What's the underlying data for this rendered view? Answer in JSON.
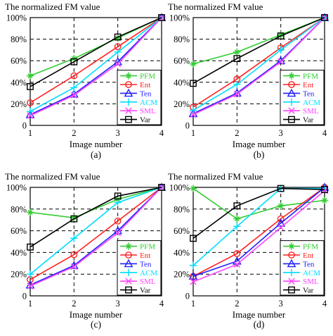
{
  "figure": {
    "panels": [
      "(a)",
      "(b)",
      "(c)",
      "(d)"
    ]
  },
  "chart_data": [
    {
      "type": "line",
      "title": "The normalized FM value",
      "xlabel": "Image number",
      "ylabel": "",
      "panel_label": "(a)",
      "x": [
        1,
        2,
        3,
        4
      ],
      "xlim": [
        1,
        4
      ],
      "ylim": [
        0,
        100
      ],
      "y_ticks": [
        "0",
        "20%",
        "40%",
        "60%",
        "80%",
        "100%"
      ],
      "x_ticks": [
        "1",
        "2",
        "3",
        "4"
      ],
      "grid": true,
      "legend": "bottom-right",
      "series": [
        {
          "name": "PFM",
          "color": "#33cc33",
          "marker": "star",
          "values": [
            46,
            62,
            81,
            100
          ]
        },
        {
          "name": "Ent",
          "color": "#ff2020",
          "marker": "circle",
          "values": [
            21,
            46,
            73,
            100
          ]
        },
        {
          "name": "Ten",
          "color": "#2020ff",
          "marker": "triangle",
          "values": [
            10,
            29,
            59,
            100
          ]
        },
        {
          "name": "ACM",
          "color": "#00ddff",
          "marker": "plus",
          "values": [
            13,
            35,
            68,
            100
          ]
        },
        {
          "name": "SML",
          "color": "#ff44ff",
          "marker": "x",
          "values": [
            9,
            28,
            57,
            100
          ]
        },
        {
          "name": "Var",
          "color": "#000000",
          "marker": "square",
          "values": [
            36,
            59,
            82,
            100
          ]
        }
      ]
    },
    {
      "type": "line",
      "title": "The normalized FM value",
      "xlabel": "Image number",
      "ylabel": "",
      "panel_label": "(b)",
      "x": [
        1,
        2,
        3,
        4
      ],
      "xlim": [
        1,
        4
      ],
      "ylim": [
        0,
        100
      ],
      "y_ticks": [
        "0",
        "20%",
        "40%",
        "60%",
        "80%",
        "100%"
      ],
      "x_ticks": [
        "1",
        "2",
        "3",
        "4"
      ],
      "grid": true,
      "legend": "bottom-right",
      "series": [
        {
          "name": "PFM",
          "color": "#33cc33",
          "marker": "star",
          "values": [
            57,
            68,
            84,
            100
          ]
        },
        {
          "name": "Ent",
          "color": "#ff2020",
          "marker": "circle",
          "values": [
            17,
            43,
            72,
            100
          ]
        },
        {
          "name": "Ten",
          "color": "#2020ff",
          "marker": "triangle",
          "values": [
            11,
            30,
            60,
            100
          ]
        },
        {
          "name": "ACM",
          "color": "#00ddff",
          "marker": "plus",
          "values": [
            14,
            38,
            70,
            100
          ]
        },
        {
          "name": "SML",
          "color": "#ff44ff",
          "marker": "x",
          "values": [
            10,
            29,
            59,
            100
          ]
        },
        {
          "name": "Var",
          "color": "#000000",
          "marker": "square",
          "values": [
            39,
            62,
            83,
            100
          ]
        }
      ]
    },
    {
      "type": "line",
      "title": "The normalized FM value",
      "xlabel": "Image number",
      "ylabel": "",
      "panel_label": "(c)",
      "x": [
        1,
        2,
        3,
        4
      ],
      "xlim": [
        1,
        4
      ],
      "ylim": [
        0,
        100
      ],
      "y_ticks": [
        "0",
        "20%",
        "40%",
        "60%",
        "80%",
        "100%"
      ],
      "x_ticks": [
        "1",
        "2",
        "3",
        "4"
      ],
      "grid": true,
      "legend": "bottom-right",
      "series": [
        {
          "name": "PFM",
          "color": "#33cc33",
          "marker": "star",
          "values": [
            77,
            72,
            89,
            100
          ]
        },
        {
          "name": "Ent",
          "color": "#ff2020",
          "marker": "circle",
          "values": [
            15,
            38,
            69,
            100
          ]
        },
        {
          "name": "Ten",
          "color": "#2020ff",
          "marker": "triangle",
          "values": [
            10,
            28,
            60,
            100
          ]
        },
        {
          "name": "ACM",
          "color": "#00ddff",
          "marker": "plus",
          "values": [
            20,
            53,
            86,
            100
          ]
        },
        {
          "name": "SML",
          "color": "#ff44ff",
          "marker": "x",
          "values": [
            9,
            27,
            58,
            100
          ]
        },
        {
          "name": "Var",
          "color": "#000000",
          "marker": "square",
          "values": [
            45,
            71,
            92,
            100
          ]
        }
      ]
    },
    {
      "type": "line",
      "title": "The normalized FM value",
      "xlabel": "Image number",
      "ylabel": "",
      "panel_label": "(d)",
      "x": [
        1,
        2,
        3,
        4
      ],
      "xlim": [
        1,
        4
      ],
      "ylim": [
        0,
        100
      ],
      "y_ticks": [
        "0",
        "20%",
        "40%",
        "60%",
        "80%",
        "100%"
      ],
      "x_ticks": [
        "1",
        "2",
        "3",
        "4"
      ],
      "grid": true,
      "legend": "bottom-right",
      "series": [
        {
          "name": "PFM",
          "color": "#33cc33",
          "marker": "star",
          "values": [
            99,
            71,
            83,
            88
          ]
        },
        {
          "name": "Ent",
          "color": "#ff2020",
          "marker": "circle",
          "values": [
            18,
            39,
            71,
            100
          ]
        },
        {
          "name": "Ten",
          "color": "#2020ff",
          "marker": "triangle",
          "values": [
            18,
            32,
            67,
            100
          ]
        },
        {
          "name": "ACM",
          "color": "#00ddff",
          "marker": "plus",
          "values": [
            28,
            64,
            99,
            99
          ]
        },
        {
          "name": "SML",
          "color": "#ff44ff",
          "marker": "x",
          "values": [
            13,
            29,
            63,
            97
          ]
        },
        {
          "name": "Var",
          "color": "#000000",
          "marker": "square",
          "values": [
            53,
            83,
            99,
            98
          ]
        }
      ]
    }
  ]
}
